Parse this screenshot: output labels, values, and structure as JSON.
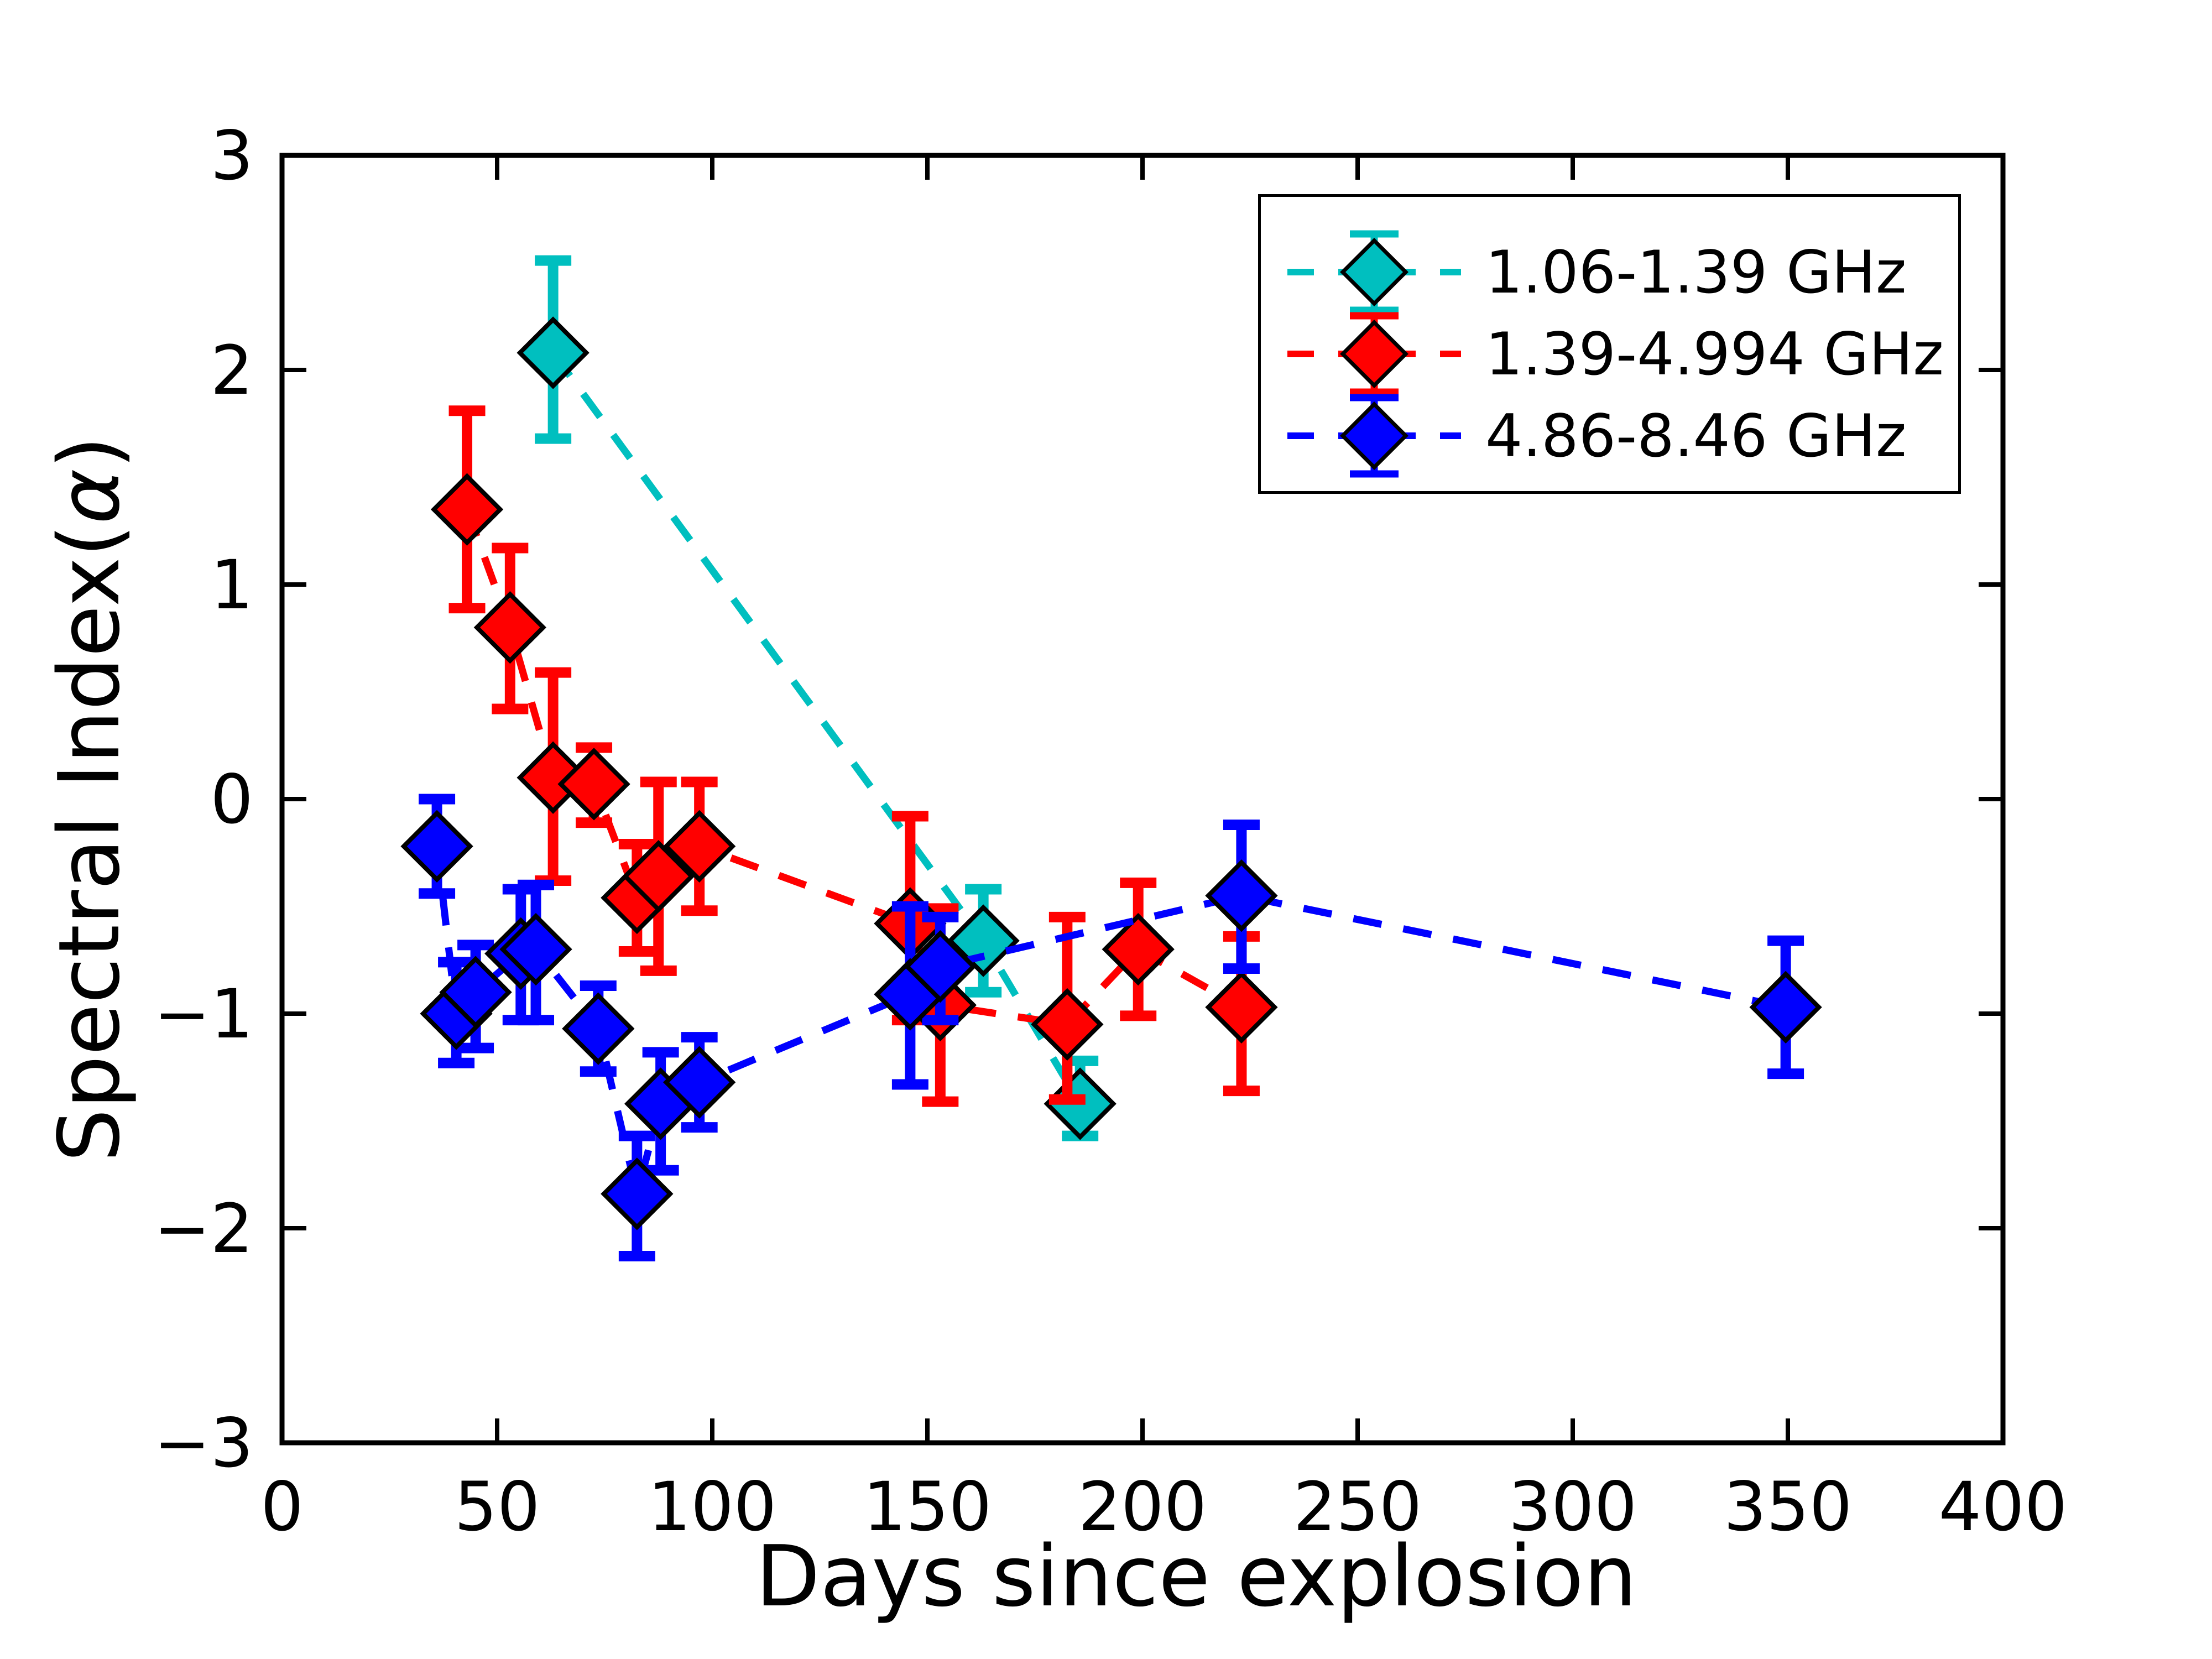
{
  "axes": {
    "xlabel": "Days since explosion",
    "ylabel_prefix": "Spectral Index(",
    "ylabel_alpha": "α",
    "ylabel_suffix": ")",
    "xlim": [
      0,
      400
    ],
    "ylim": [
      -3,
      3
    ],
    "xticks": [
      {
        "value": 0,
        "label": "0"
      },
      {
        "value": 50,
        "label": "50"
      },
      {
        "value": 100,
        "label": "100"
      },
      {
        "value": 150,
        "label": "150"
      },
      {
        "value": 200,
        "label": "200"
      },
      {
        "value": 250,
        "label": "250"
      },
      {
        "value": 300,
        "label": "300"
      },
      {
        "value": 350,
        "label": "350"
      },
      {
        "value": 400,
        "label": "400"
      }
    ],
    "yticks": [
      {
        "value": 3,
        "label": "3"
      },
      {
        "value": 2,
        "label": "2"
      },
      {
        "value": 1,
        "label": "1"
      },
      {
        "value": 0,
        "label": "0"
      },
      {
        "value": -1,
        "label": "−1"
      },
      {
        "value": -2,
        "label": "−2"
      },
      {
        "value": -3,
        "label": "−3"
      }
    ]
  },
  "legend": {
    "entries": [
      {
        "label": "1.06-1.39 GHz",
        "color": "#00bfbf"
      },
      {
        "label": "1.39-4.994 GHz",
        "color": "#ff0000"
      },
      {
        "label": "4.86-8.46 GHz",
        "color": "#0000ff"
      }
    ]
  },
  "chart_data": {
    "type": "scatter",
    "title": "",
    "xlabel": "Days since explosion",
    "ylabel": "Spectral Index(α)",
    "xlim": [
      0,
      400
    ],
    "ylim": [
      -3,
      3
    ],
    "grid": false,
    "legend_position": "upper right",
    "marker": "diamond",
    "linestyle": "dashed",
    "series": [
      {
        "name": "1.06-1.39 GHz",
        "color": "#00bfbf",
        "points": [
          {
            "x": 63,
            "y": 2.08,
            "err_up": 0.43,
            "err_down": 0.4
          },
          {
            "x": 163,
            "y": -0.66,
            "err_up": 0.24,
            "err_down": 0.24
          },
          {
            "x": 185.5,
            "y": -1.42,
            "err_up": 0.2,
            "err_down": 0.15
          }
        ]
      },
      {
        "name": "1.39-4.994 GHz",
        "color": "#ff0000",
        "points": [
          {
            "x": 43,
            "y": 1.35,
            "err_up": 0.46,
            "err_down": 0.46
          },
          {
            "x": 53,
            "y": 0.8,
            "err_up": 0.37,
            "err_down": 0.38
          },
          {
            "x": 63,
            "y": 0.1,
            "err_up": 0.49,
            "err_down": 0.48
          },
          {
            "x": 72.5,
            "y": 0.07,
            "err_up": 0.17,
            "err_down": 0.18
          },
          {
            "x": 82.5,
            "y": -0.46,
            "err_up": 0.25,
            "err_down": 0.25
          },
          {
            "x": 87.5,
            "y": -0.36,
            "err_up": 0.44,
            "err_down": 0.44
          },
          {
            "x": 97,
            "y": -0.22,
            "err_up": 0.3,
            "err_down": 0.3
          },
          {
            "x": 146,
            "y": -0.58,
            "err_up": 0.5,
            "err_down": 0.45
          },
          {
            "x": 153,
            "y": -0.96,
            "err_up": 0.45,
            "err_down": 0.45
          },
          {
            "x": 182.5,
            "y": -1.05,
            "err_up": 0.5,
            "err_down": 0.35
          },
          {
            "x": 199,
            "y": -0.7,
            "err_up": 0.31,
            "err_down": 0.31
          },
          {
            "x": 223,
            "y": -0.97,
            "err_up": 0.33,
            "err_down": 0.39
          }
        ]
      },
      {
        "name": "4.86-8.46 GHz",
        "color": "#0000ff",
        "points": [
          {
            "x": 36,
            "y": -0.22,
            "err_up": 0.22,
            "err_down": 0.22
          },
          {
            "x": 40.5,
            "y": -1.0,
            "err_up": 0.24,
            "err_down": 0.23
          },
          {
            "x": 45,
            "y": -0.9,
            "err_up": 0.22,
            "err_down": 0.26
          },
          {
            "x": 55.5,
            "y": -0.72,
            "err_up": 0.3,
            "err_down": 0.31
          },
          {
            "x": 59,
            "y": -0.7,
            "err_up": 0.3,
            "err_down": 0.33
          },
          {
            "x": 73.5,
            "y": -1.07,
            "err_up": 0.2,
            "err_down": 0.2
          },
          {
            "x": 82.5,
            "y": -1.84,
            "err_up": 0.27,
            "err_down": 0.29
          },
          {
            "x": 88,
            "y": -1.42,
            "err_up": 0.24,
            "err_down": 0.31
          },
          {
            "x": 97,
            "y": -1.32,
            "err_up": 0.21,
            "err_down": 0.21
          },
          {
            "x": 146,
            "y": -0.91,
            "err_up": 0.41,
            "err_down": 0.42
          },
          {
            "x": 153,
            "y": -0.78,
            "err_up": 0.23,
            "err_down": 0.25
          },
          {
            "x": 223,
            "y": -0.45,
            "err_up": 0.33,
            "err_down": 0.34
          },
          {
            "x": 349.5,
            "y": -0.97,
            "err_up": 0.31,
            "err_down": 0.31
          }
        ]
      }
    ]
  }
}
